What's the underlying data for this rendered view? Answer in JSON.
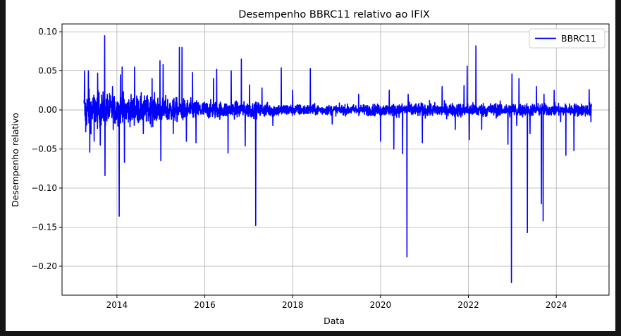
{
  "chart_data": {
    "type": "line",
    "title": "Desempenho BBRC11 relativo ao IFIX",
    "xlabel": "Data",
    "ylabel": "Desempenho relativo",
    "xlim": [
      2012.75,
      2025.2
    ],
    "ylim": [
      -0.237,
      0.11
    ],
    "xticks": [
      2014,
      2016,
      2018,
      2020,
      2022,
      2024
    ],
    "xtick_labels": [
      "2014",
      "2016",
      "2018",
      "2020",
      "2022",
      "2024"
    ],
    "yticks": [
      0.1,
      0.05,
      0.0,
      -0.05,
      -0.1,
      -0.15,
      -0.2
    ],
    "ytick_labels": [
      "0.10",
      "0.05",
      "0.00",
      "−0.05",
      "−0.10",
      "−0.15",
      "−0.20"
    ],
    "grid": true,
    "legend": {
      "placement": "top-right",
      "entries": [
        "BBRC11"
      ]
    },
    "series": [
      {
        "name": "BBRC11",
        "color": "#0000ff",
        "x_start": 2013.25,
        "x_end": 2024.8,
        "noise_profile": [
          [
            2013.25,
            0.02
          ],
          [
            2014.0,
            0.016
          ],
          [
            2015.0,
            0.014
          ],
          [
            2016.0,
            0.009
          ],
          [
            2017.0,
            0.008
          ],
          [
            2018.0,
            0.006
          ],
          [
            2019.0,
            0.005
          ],
          [
            2020.0,
            0.006
          ],
          [
            2021.0,
            0.007
          ],
          [
            2022.0,
            0.007
          ],
          [
            2023.0,
            0.007
          ],
          [
            2024.0,
            0.006
          ],
          [
            2024.8,
            0.007
          ]
        ],
        "spikes": [
          [
            2013.26,
            0.05
          ],
          [
            2013.29,
            -0.028
          ],
          [
            2013.35,
            0.05
          ],
          [
            2013.38,
            -0.054
          ],
          [
            2013.48,
            -0.04
          ],
          [
            2013.56,
            0.047
          ],
          [
            2013.62,
            -0.045
          ],
          [
            2013.72,
            0.095
          ],
          [
            2013.73,
            -0.084
          ],
          [
            2013.9,
            0.03
          ],
          [
            2014.05,
            -0.136
          ],
          [
            2014.08,
            0.045
          ],
          [
            2014.12,
            0.055
          ],
          [
            2014.17,
            -0.067
          ],
          [
            2014.4,
            0.055
          ],
          [
            2014.6,
            -0.03
          ],
          [
            2014.8,
            0.04
          ],
          [
            2014.98,
            0.063
          ],
          [
            2015.0,
            -0.065
          ],
          [
            2015.05,
            0.058
          ],
          [
            2015.28,
            -0.03
          ],
          [
            2015.42,
            0.08
          ],
          [
            2015.48,
            0.08
          ],
          [
            2015.58,
            -0.04
          ],
          [
            2015.72,
            0.048
          ],
          [
            2015.8,
            -0.042
          ],
          [
            2016.2,
            0.04
          ],
          [
            2016.27,
            0.052
          ],
          [
            2016.53,
            -0.055
          ],
          [
            2016.6,
            0.05
          ],
          [
            2016.83,
            0.065
          ],
          [
            2016.92,
            -0.046
          ],
          [
            2017.02,
            0.032
          ],
          [
            2017.16,
            -0.148
          ],
          [
            2017.3,
            0.028
          ],
          [
            2017.55,
            -0.02
          ],
          [
            2017.74,
            0.054
          ],
          [
            2018.0,
            0.025
          ],
          [
            2018.4,
            0.053
          ],
          [
            2018.9,
            -0.018
          ],
          [
            2019.5,
            0.02
          ],
          [
            2020.0,
            -0.04
          ],
          [
            2020.2,
            0.025
          ],
          [
            2020.3,
            -0.05
          ],
          [
            2020.5,
            -0.056
          ],
          [
            2020.6,
            -0.188
          ],
          [
            2020.63,
            0.02
          ],
          [
            2020.95,
            -0.042
          ],
          [
            2021.4,
            0.03
          ],
          [
            2021.7,
            -0.025
          ],
          [
            2021.9,
            0.031
          ],
          [
            2021.97,
            0.056
          ],
          [
            2022.02,
            -0.038
          ],
          [
            2022.17,
            0.082
          ],
          [
            2022.3,
            -0.025
          ],
          [
            2022.9,
            -0.044
          ],
          [
            2022.98,
            -0.221
          ],
          [
            2022.99,
            0.046
          ],
          [
            2023.1,
            -0.02
          ],
          [
            2023.15,
            0.04
          ],
          [
            2023.34,
            -0.157
          ],
          [
            2023.4,
            -0.03
          ],
          [
            2023.55,
            0.03
          ],
          [
            2023.66,
            -0.12
          ],
          [
            2023.7,
            -0.142
          ],
          [
            2023.72,
            0.02
          ],
          [
            2023.95,
            0.025
          ],
          [
            2024.1,
            -0.015
          ],
          [
            2024.22,
            -0.058
          ],
          [
            2024.4,
            -0.052
          ],
          [
            2024.75,
            0.026
          ],
          [
            2024.79,
            -0.015
          ]
        ]
      }
    ]
  }
}
